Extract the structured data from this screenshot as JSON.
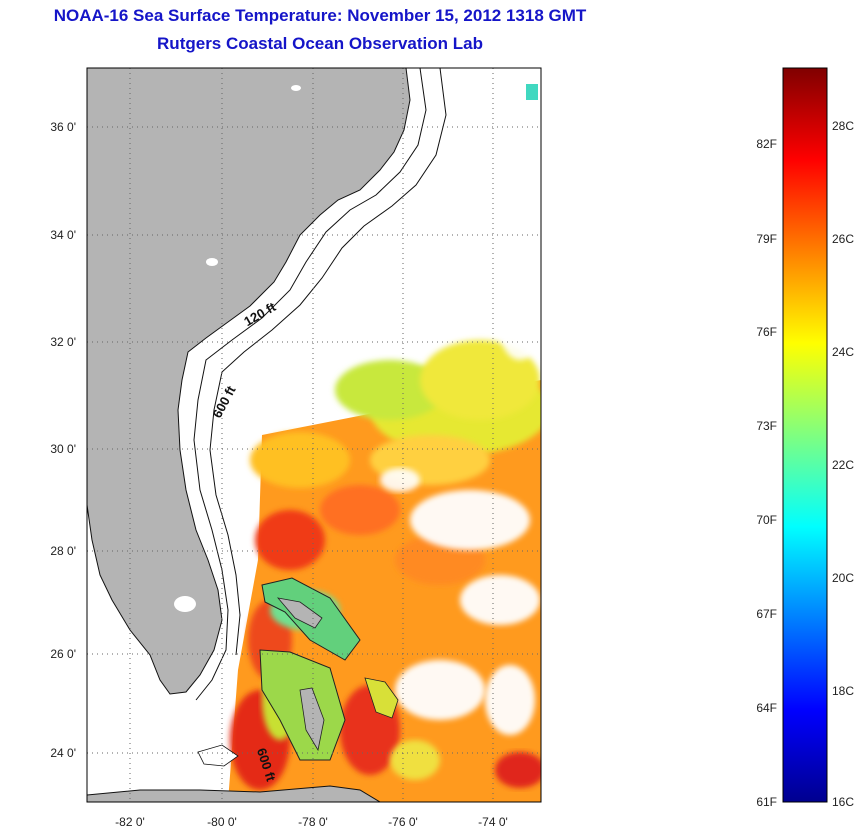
{
  "header": {
    "title": "NOAA-16 Sea Surface Temperature:  November 15, 2012 1318 GMT",
    "subtitle": "Rutgers Coastal Ocean Observation Lab"
  },
  "map": {
    "lat_ticks": [
      "36 0'",
      "34 0'",
      "32 0'",
      "30 0'",
      "28 0'",
      "26 0'",
      "24 0'"
    ],
    "lon_ticks": [
      "-82 0'",
      "-80 0'",
      "-78 0'",
      "-76 0'",
      "-74 0'"
    ],
    "contour_labels": [
      "120 ft",
      "600 ft",
      "600 ft"
    ],
    "land_color": "#b4b4b4",
    "grid": "dotted"
  },
  "colorbar": {
    "fahrenheit": [
      "82F",
      "79F",
      "76F",
      "73F",
      "70F",
      "67F",
      "64F",
      "61F"
    ],
    "celsius": [
      "28C",
      "26C",
      "24C",
      "22C",
      "20C",
      "18C",
      "16C"
    ],
    "range_celsius": [
      16,
      29.2
    ],
    "colormap": "jet"
  }
}
